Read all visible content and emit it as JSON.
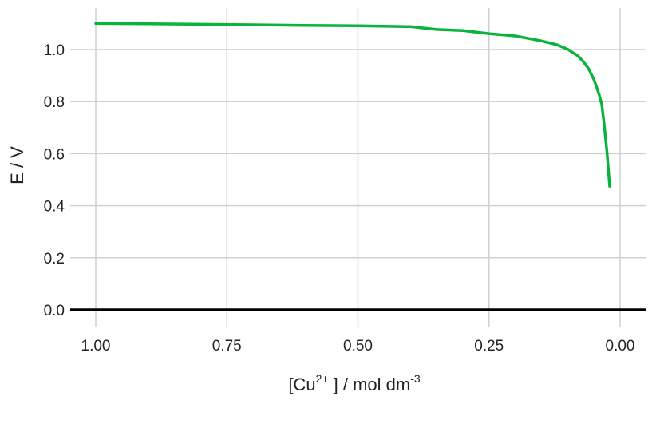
{
  "chart_data": {
    "type": "line",
    "x_axis": {
      "label_prefix": "[Cu",
      "label_sup": "2+",
      "label_middle": " ] / mol dm",
      "label_sup2": "-3",
      "reversed": true,
      "xlim": [
        1.0,
        0.0
      ],
      "ticks": [
        1.0,
        0.75,
        0.5,
        0.25,
        0.0
      ],
      "tick_labels": [
        "1.00",
        "0.75",
        "0.50",
        "0.25",
        "0.00"
      ]
    },
    "y_axis": {
      "label": "E / V",
      "ylim": [
        0.0,
        1.1
      ],
      "ticks": [
        0.0,
        0.2,
        0.4,
        0.6,
        0.8,
        1.0
      ],
      "tick_labels": [
        "0.0",
        "0.2",
        "0.4",
        "0.6",
        "0.8",
        "1.0"
      ]
    },
    "grid": true,
    "series": [
      {
        "color": "#0ab43c",
        "x": [
          1.0,
          0.9,
          0.8,
          0.7,
          0.6,
          0.5,
          0.4,
          0.35,
          0.3,
          0.25,
          0.2,
          0.15,
          0.12,
          0.1,
          0.08,
          0.07,
          0.06,
          0.05,
          0.045,
          0.04,
          0.035,
          0.03,
          0.025,
          0.02
        ],
        "y": [
          1.1,
          1.099,
          1.097,
          1.095,
          1.093,
          1.091,
          1.088,
          1.077,
          1.073,
          1.061,
          1.052,
          1.033,
          1.018,
          1.001,
          0.975,
          0.953,
          0.926,
          0.885,
          0.857,
          0.827,
          0.79,
          0.705,
          0.605,
          0.475
        ]
      }
    ],
    "baseline_y": 0.0
  }
}
